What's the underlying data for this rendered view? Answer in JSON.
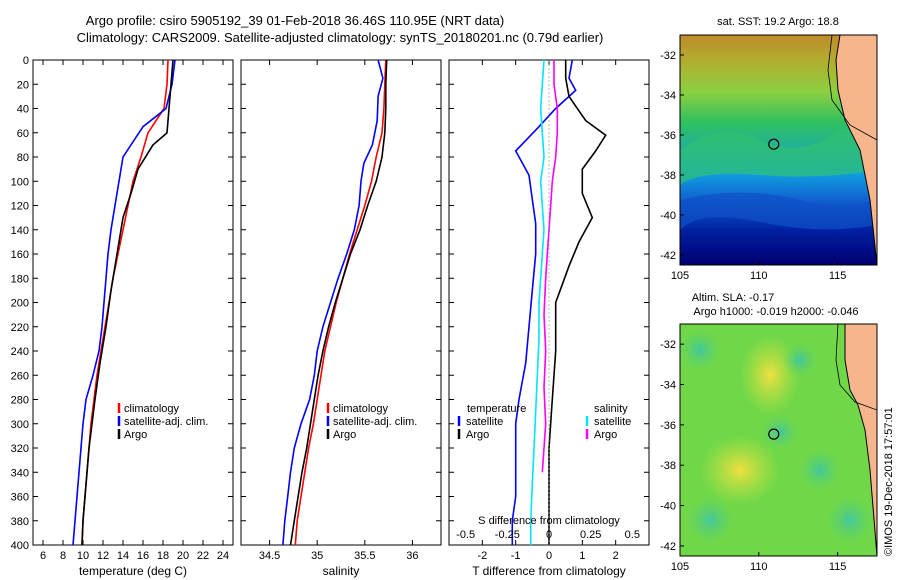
{
  "header": {
    "line1": "Argo profile: csiro 5905192_39 01-Feb-2018 36.46S 110.95E (NRT data)",
    "line2": "Climatology: CARS2009. Satellite-adjusted climatology: synTS_20180201.nc (0.79d earlier)"
  },
  "credit": "©IMOS 19-Dec-2018 17:57:01",
  "colors": {
    "climatology": "#ff0000",
    "satellite": "#0000ff",
    "argo": "#000000",
    "sal_satellite": "#00e5ff",
    "sal_clim": "#ff00ff"
  },
  "chart_data": [
    {
      "type": "line",
      "id": "temperature",
      "xlabel": "temperature (deg C)",
      "ylabel": "",
      "xlim": [
        5,
        25
      ],
      "ylim": [
        400,
        0
      ],
      "xticks": [
        6,
        8,
        10,
        12,
        14,
        16,
        18,
        20,
        22,
        24
      ],
      "yticks": [
        0,
        20,
        40,
        60,
        80,
        100,
        120,
        140,
        160,
        180,
        200,
        220,
        240,
        260,
        280,
        300,
        320,
        340,
        360,
        380,
        400
      ],
      "legend": [
        "climatology",
        "satellite-adj. clim.",
        "Argo"
      ],
      "series": [
        {
          "name": "climatology",
          "color": "#ff0000",
          "points": [
            [
              18.5,
              0
            ],
            [
              18.4,
              20
            ],
            [
              18.1,
              40
            ],
            [
              16.5,
              60
            ],
            [
              15.8,
              80
            ],
            [
              15.0,
              100
            ],
            [
              14.5,
              120
            ],
            [
              14.0,
              140
            ],
            [
              13.5,
              160
            ],
            [
              13.0,
              180
            ],
            [
              12.6,
              200
            ],
            [
              12.2,
              220
            ],
            [
              11.8,
              240
            ],
            [
              11.4,
              260
            ],
            [
              11.1,
              280
            ],
            [
              10.8,
              300
            ],
            [
              10.6,
              320
            ],
            [
              10.4,
              340
            ],
            [
              10.2,
              360
            ],
            [
              10.0,
              380
            ],
            [
              9.9,
              400
            ]
          ]
        },
        {
          "name": "satellite-adj. clim.",
          "color": "#0000ff",
          "points": [
            [
              19.2,
              0
            ],
            [
              18.9,
              20
            ],
            [
              18.3,
              40
            ],
            [
              16.0,
              55
            ],
            [
              14.0,
              80
            ],
            [
              13.6,
              100
            ],
            [
              13.2,
              120
            ],
            [
              12.8,
              140
            ],
            [
              12.5,
              160
            ],
            [
              12.3,
              180
            ],
            [
              12.1,
              200
            ],
            [
              11.9,
              220
            ],
            [
              11.6,
              240
            ],
            [
              11.0,
              260
            ],
            [
              10.3,
              280
            ],
            [
              10.0,
              300
            ],
            [
              9.8,
              320
            ],
            [
              9.6,
              340
            ],
            [
              9.4,
              360
            ],
            [
              9.2,
              380
            ],
            [
              9.0,
              400
            ]
          ]
        },
        {
          "name": "Argo",
          "color": "#000000",
          "points": [
            [
              19.0,
              0
            ],
            [
              18.8,
              20
            ],
            [
              18.6,
              40
            ],
            [
              18.4,
              60
            ],
            [
              17.0,
              70
            ],
            [
              15.5,
              90
            ],
            [
              14.8,
              110
            ],
            [
              14.0,
              130
            ],
            [
              13.4,
              160
            ],
            [
              12.8,
              190
            ],
            [
              12.3,
              220
            ],
            [
              11.7,
              250
            ],
            [
              11.2,
              280
            ],
            [
              10.9,
              300
            ],
            [
              10.6,
              320
            ],
            [
              10.4,
              340
            ],
            [
              10.2,
              360
            ],
            [
              10.0,
              380
            ],
            [
              9.9,
              400
            ]
          ]
        }
      ]
    },
    {
      "type": "line",
      "id": "salinity",
      "xlabel": "salinity",
      "xlim": [
        34.2,
        36.3
      ],
      "ylim": [
        400,
        0
      ],
      "xticks": [
        34.5,
        35,
        35.5,
        36
      ],
      "xticklabels": [
        "34.5",
        "35",
        "35.5",
        "36"
      ],
      "legend": [
        "climatology",
        "satellite-adj. clim.",
        "Argo"
      ],
      "series": [
        {
          "name": "climatology",
          "color": "#ff0000",
          "points": [
            [
              35.72,
              0
            ],
            [
              35.71,
              20
            ],
            [
              35.7,
              40
            ],
            [
              35.68,
              60
            ],
            [
              35.62,
              80
            ],
            [
              35.57,
              100
            ],
            [
              35.5,
              120
            ],
            [
              35.42,
              140
            ],
            [
              35.34,
              160
            ],
            [
              35.27,
              180
            ],
            [
              35.2,
              200
            ],
            [
              35.14,
              220
            ],
            [
              35.08,
              240
            ],
            [
              35.04,
              260
            ],
            [
              35.0,
              280
            ],
            [
              34.96,
              300
            ],
            [
              34.91,
              320
            ],
            [
              34.87,
              340
            ],
            [
              34.83,
              360
            ],
            [
              34.79,
              380
            ],
            [
              34.77,
              400
            ]
          ]
        },
        {
          "name": "satellite-adj. clim.",
          "color": "#0000ff",
          "points": [
            [
              35.64,
              0
            ],
            [
              35.69,
              15
            ],
            [
              35.64,
              30
            ],
            [
              35.63,
              50
            ],
            [
              35.58,
              70
            ],
            [
              35.49,
              85
            ],
            [
              35.46,
              100
            ],
            [
              35.44,
              120
            ],
            [
              35.39,
              140
            ],
            [
              35.31,
              160
            ],
            [
              35.22,
              180
            ],
            [
              35.14,
              200
            ],
            [
              35.06,
              220
            ],
            [
              35.0,
              240
            ],
            [
              34.97,
              260
            ],
            [
              34.92,
              280
            ],
            [
              34.83,
              300
            ],
            [
              34.76,
              320
            ],
            [
              34.72,
              340
            ],
            [
              34.69,
              360
            ],
            [
              34.66,
              380
            ],
            [
              34.64,
              400
            ]
          ]
        },
        {
          "name": "Argo",
          "color": "#000000",
          "points": [
            [
              35.73,
              0
            ],
            [
              35.72,
              20
            ],
            [
              35.72,
              40
            ],
            [
              35.71,
              60
            ],
            [
              35.68,
              80
            ],
            [
              35.62,
              100
            ],
            [
              35.53,
              120
            ],
            [
              35.45,
              140
            ],
            [
              35.35,
              160
            ],
            [
              35.27,
              180
            ],
            [
              35.19,
              200
            ],
            [
              35.12,
              220
            ],
            [
              35.06,
              240
            ],
            [
              35.01,
              260
            ],
            [
              34.97,
              280
            ],
            [
              34.93,
              300
            ],
            [
              34.89,
              320
            ],
            [
              34.84,
              340
            ],
            [
              34.8,
              360
            ],
            [
              34.76,
              380
            ],
            [
              34.72,
              400
            ]
          ]
        }
      ]
    },
    {
      "type": "line",
      "id": "difference",
      "xlabel": "T difference from climatology",
      "xlabel_top": "S difference from climatology",
      "xlim": [
        -3,
        3
      ],
      "ylim": [
        400,
        0
      ],
      "xticks": [
        -2,
        -1,
        0,
        1,
        2
      ],
      "xticks_s": [
        -0.5,
        -0.25,
        0,
        0.25,
        0.5
      ],
      "xticklabels_s": [
        "-0.5",
        "-0.25",
        "0",
        "0.25",
        "0.5"
      ],
      "legend_temperature_title": "temperature",
      "legend_salinity_title": "salinity",
      "legend_temperature": [
        "satellite",
        "Argo"
      ],
      "legend_salinity": [
        "satellite",
        "Argo"
      ],
      "series": [
        {
          "name": "T satellite",
          "color": "#0000ff",
          "points": [
            [
              0.7,
              0
            ],
            [
              0.6,
              15
            ],
            [
              0.8,
              25
            ],
            [
              0.2,
              40
            ],
            [
              -0.3,
              55
            ],
            [
              -1.0,
              75
            ],
            [
              -0.6,
              95
            ],
            [
              -0.5,
              115
            ],
            [
              -0.4,
              135
            ],
            [
              -0.4,
              160
            ],
            [
              -0.5,
              190
            ],
            [
              -0.6,
              220
            ],
            [
              -0.7,
              250
            ],
            [
              -0.9,
              280
            ],
            [
              -1.0,
              300
            ],
            [
              -1.0,
              330
            ],
            [
              -1.0,
              360
            ],
            [
              -1.1,
              380
            ],
            [
              -1.1,
              400
            ]
          ]
        },
        {
          "name": "T Argo",
          "color": "#000000",
          "points": [
            [
              0.5,
              0
            ],
            [
              0.5,
              15
            ],
            [
              0.6,
              30
            ],
            [
              1.1,
              50
            ],
            [
              1.7,
              62
            ],
            [
              1.4,
              75
            ],
            [
              1.0,
              90
            ],
            [
              1.0,
              110
            ],
            [
              1.3,
              130
            ],
            [
              0.9,
              150
            ],
            [
              0.6,
              170
            ],
            [
              0.2,
              200
            ],
            [
              0.2,
              240
            ],
            [
              0.1,
              280
            ],
            [
              0.0,
              320
            ],
            [
              0.0,
              360
            ],
            [
              0.0,
              400
            ]
          ]
        },
        {
          "name": "S satellite",
          "color": "#00e5ff",
          "points": [
            [
              -0.03,
              0
            ],
            [
              -0.04,
              20
            ],
            [
              -0.05,
              40
            ],
            [
              -0.04,
              60
            ],
            [
              -0.03,
              80
            ],
            [
              -0.05,
              100
            ],
            [
              -0.04,
              120
            ],
            [
              -0.03,
              140
            ],
            [
              -0.04,
              160
            ],
            [
              -0.05,
              180
            ],
            [
              -0.06,
              200
            ],
            [
              -0.06,
              230
            ],
            [
              -0.07,
              260
            ],
            [
              -0.08,
              290
            ],
            [
              -0.09,
              320
            ],
            [
              -0.1,
              350
            ],
            [
              -0.11,
              380
            ],
            [
              -0.11,
              400
            ]
          ]
        },
        {
          "name": "S Argo",
          "color": "#ff00ff",
          "points": [
            [
              0.03,
              0
            ],
            [
              0.03,
              20
            ],
            [
              0.05,
              40
            ],
            [
              0.05,
              60
            ],
            [
              0.04,
              80
            ],
            [
              0.02,
              100
            ],
            [
              0.01,
              120
            ],
            [
              0.0,
              140
            ],
            [
              -0.01,
              160
            ],
            [
              -0.02,
              180
            ],
            [
              -0.03,
              210
            ],
            [
              -0.02,
              240
            ],
            [
              -0.03,
              270
            ],
            [
              -0.02,
              300
            ],
            [
              -0.03,
              320
            ],
            [
              -0.04,
              340
            ]
          ]
        }
      ]
    },
    {
      "type": "heatmap",
      "id": "sst-map",
      "title": "sat. SST: 19.2 Argo: 18.8",
      "xlim": [
        105,
        117.5
      ],
      "ylim": [
        -42.5,
        -31
      ],
      "xticks": [
        105,
        110,
        115
      ],
      "yticks": [
        -32,
        -34,
        -36,
        -38,
        -40,
        -42
      ],
      "marker": [
        110.95,
        -36.46
      ]
    },
    {
      "type": "heatmap",
      "id": "sla-map",
      "title": "Altim. SLA: -0.17",
      "subtitle": "Argo h1000: -0.019 h2000: -0.046",
      "xlim": [
        105,
        117.5
      ],
      "ylim": [
        -42.5,
        -31
      ],
      "xticks": [
        105,
        110,
        115
      ],
      "yticks": [
        -32,
        -34,
        -36,
        -38,
        -40,
        -42
      ],
      "marker": [
        110.95,
        -36.46
      ]
    }
  ]
}
